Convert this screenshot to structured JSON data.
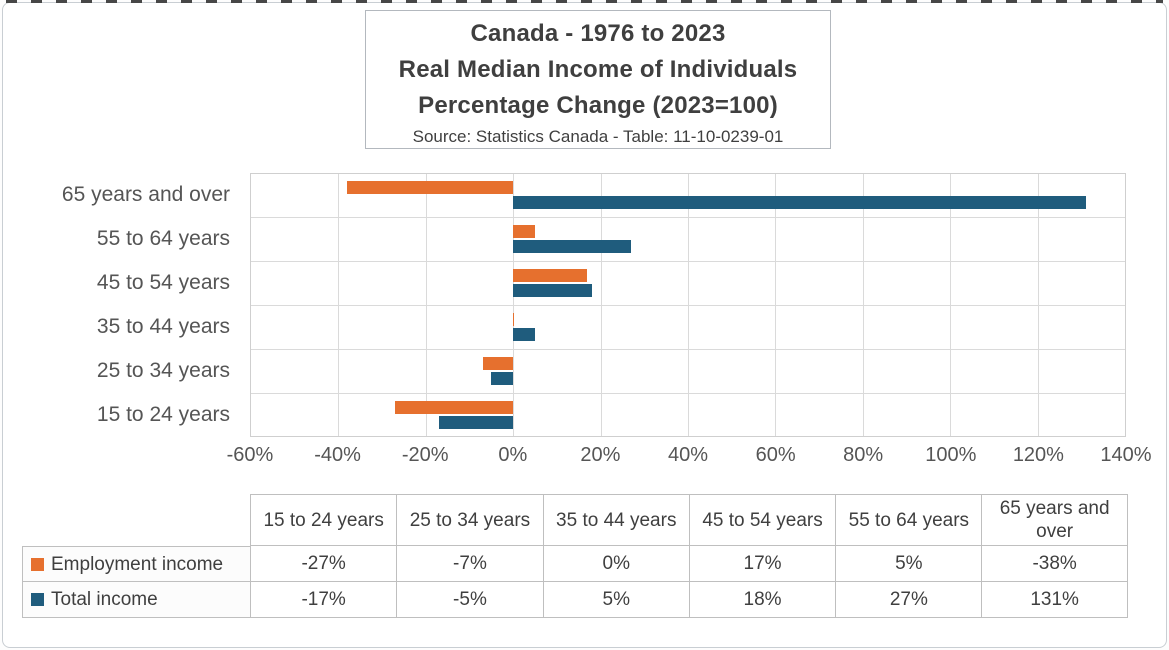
{
  "title_box": {
    "line1": "Canada - 1976 to 2023",
    "line2": "Real Median Income of Individuals",
    "line3": "Percentage Change (2023=100)",
    "source": "Source: Statistics Canada - Table: 11-10-0239-01"
  },
  "chart_data": {
    "type": "bar",
    "orientation": "horizontal",
    "title": "Canada - 1976 to 2023 Real Median Income of Individuals Percentage Change (2023=100)",
    "subtitle": "Source: Statistics Canada - Table: 11-10-0239-01",
    "categories": [
      "15 to 24 years",
      "25 to 34 years",
      "35 to 44 years",
      "45 to 54 years",
      "55 to 64 years",
      "65 years and over"
    ],
    "category_order_top_to_bottom": [
      "65 years and over",
      "55 to 64 years",
      "45 to 54 years",
      "35 to 44 years",
      "25 to 34 years",
      "15 to 24 years"
    ],
    "series": [
      {
        "name": "Employment income",
        "color": "#e6702e",
        "values": [
          -27,
          -7,
          0,
          17,
          5,
          -38
        ]
      },
      {
        "name": "Total income",
        "color": "#1f5c7d",
        "values": [
          -17,
          -5,
          5,
          18,
          27,
          131
        ]
      }
    ],
    "xlabel": "",
    "ylabel": "",
    "xlim": [
      -60,
      140
    ],
    "x_ticks": [
      "-60%",
      "-40%",
      "-20%",
      "0%",
      "20%",
      "40%",
      "60%",
      "80%",
      "100%",
      "120%",
      "140%"
    ],
    "grid": true,
    "legend_position": "table-rows-below"
  },
  "table": {
    "corner": "",
    "columns": [
      "15 to 24 years",
      "25 to 34 years",
      "35 to 44 years",
      "45 to 54 years",
      "55 to 64 years",
      "65 years and over"
    ],
    "rows": [
      {
        "label": "Employment income",
        "swatch_color": "#e6702e",
        "values": [
          "-27%",
          "-7%",
          "0%",
          "17%",
          "5%",
          "-38%"
        ]
      },
      {
        "label": "Total income",
        "swatch_color": "#1f5c7d",
        "values": [
          "-17%",
          "-5%",
          "5%",
          "18%",
          "27%",
          "131%"
        ]
      }
    ]
  },
  "colors": {
    "employment_income": "#e6702e",
    "total_income": "#1f5c7d",
    "gridline": "#dadada",
    "table_border": "#bfbfbf",
    "text": "#3f3f3f"
  }
}
